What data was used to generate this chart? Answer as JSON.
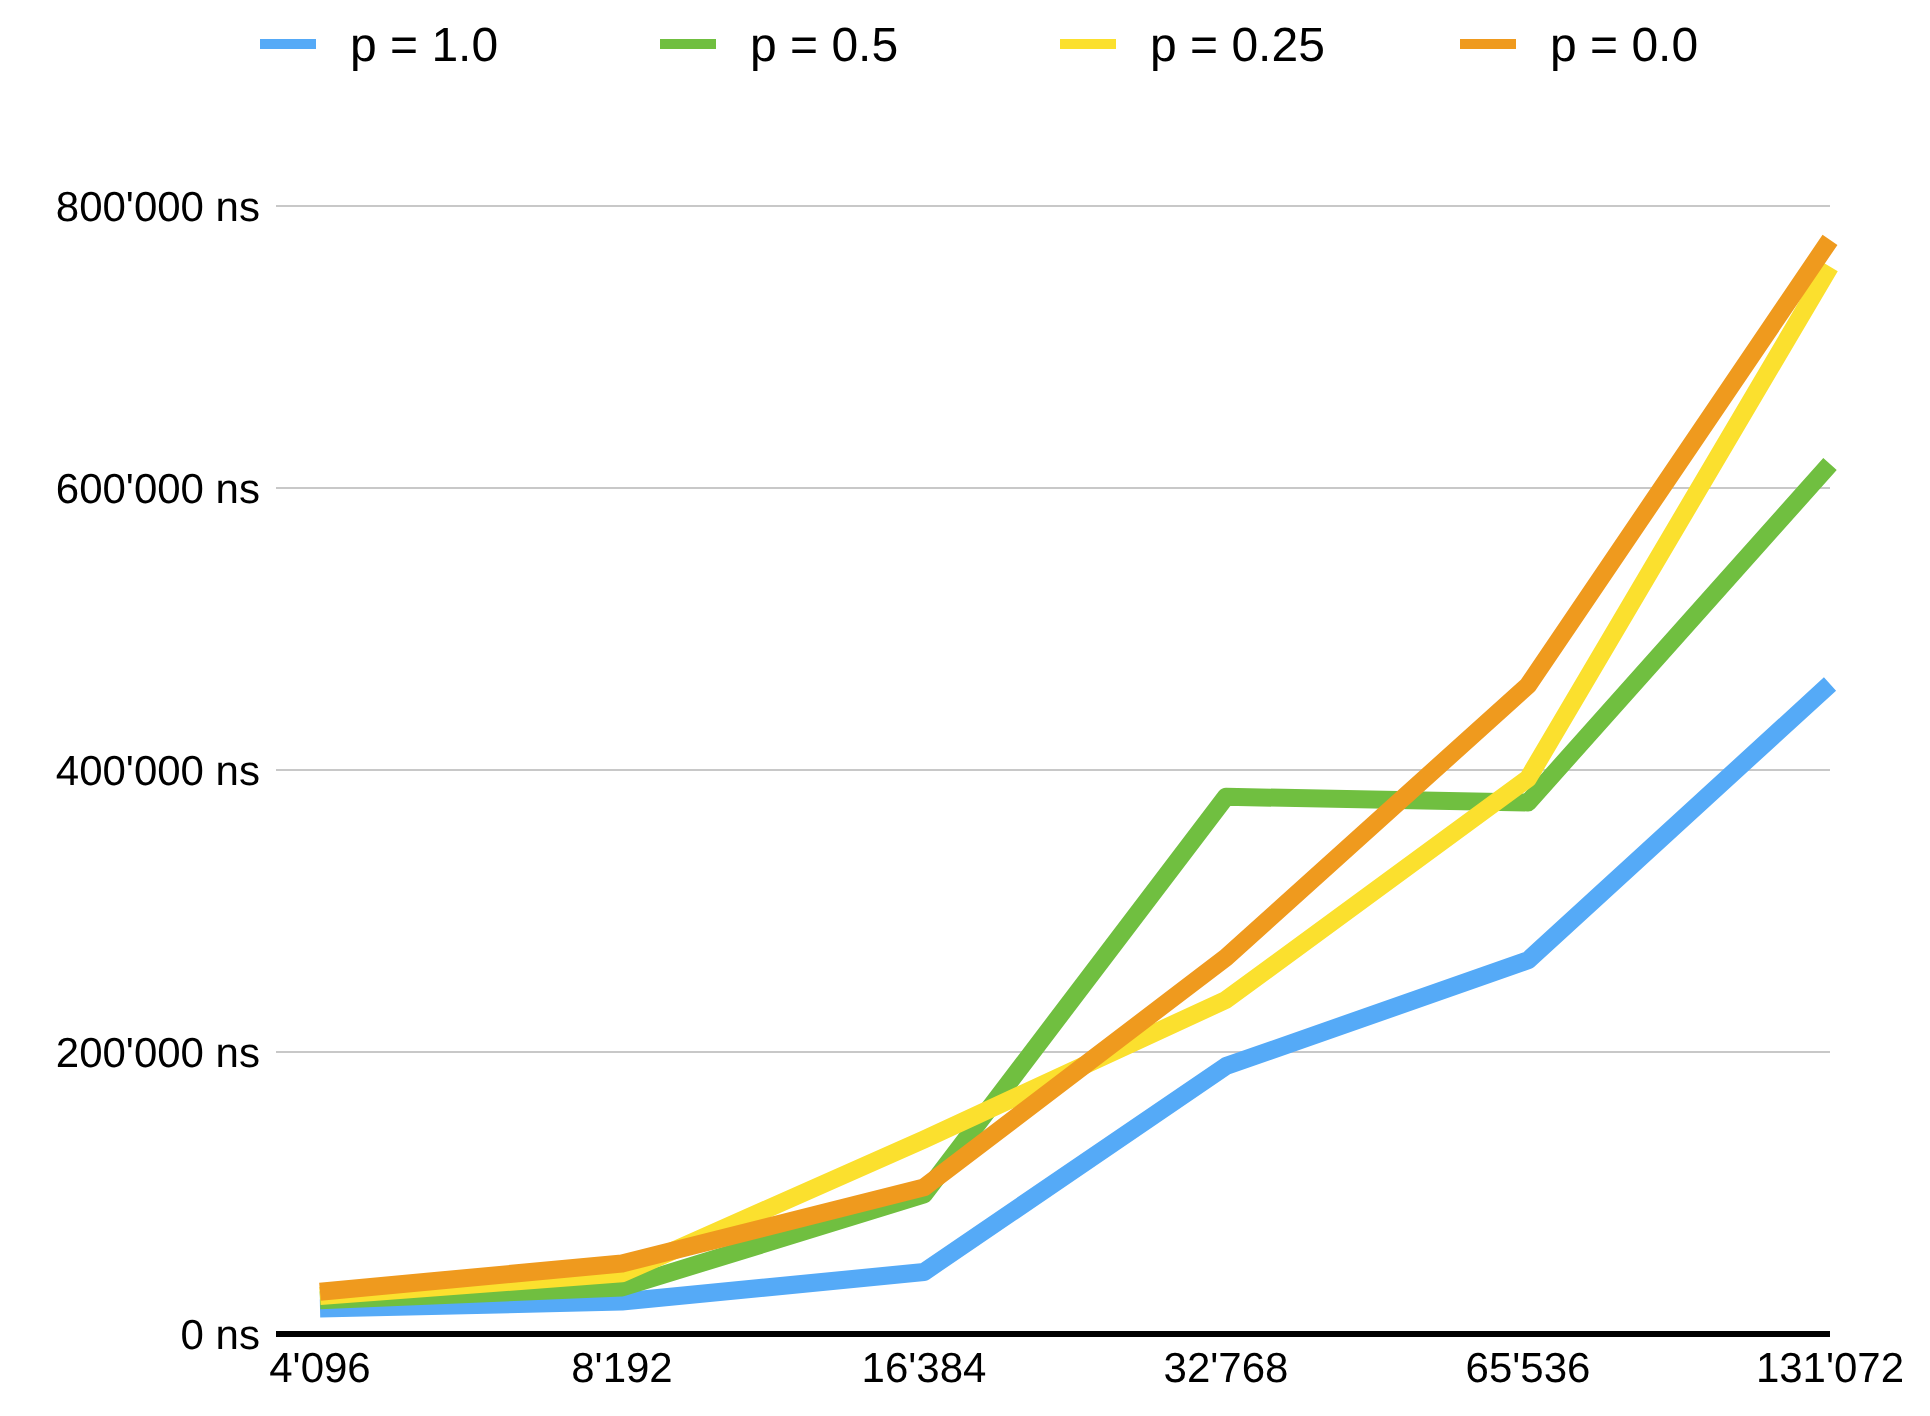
{
  "chart_data": {
    "type": "line",
    "categories": [
      "4'096",
      "8'192",
      "16'384",
      "32'768",
      "65'536",
      "131'072"
    ],
    "series": [
      {
        "name": "p = 1.0",
        "color": "#55aaf7",
        "values": [
          18000,
          23000,
          44000,
          190000,
          265000,
          461000
        ]
      },
      {
        "name": "p = 0.5",
        "color": "#70bf40",
        "values": [
          24000,
          33000,
          99000,
          381000,
          377000,
          617000
        ]
      },
      {
        "name": "p = 0.25",
        "color": "#fbe02e",
        "values": [
          27000,
          43000,
          138000,
          237000,
          394000,
          757000
        ]
      },
      {
        "name": "p = 0.0",
        "color": "#ef9a1e",
        "values": [
          30000,
          50000,
          104000,
          267000,
          460000,
          776000
        ]
      }
    ],
    "ylim": [
      0,
      800000
    ],
    "yticks": [
      {
        "value": 0,
        "label": "0 ns"
      },
      {
        "value": 200000,
        "label": "200'000 ns"
      },
      {
        "value": 400000,
        "label": "400'000 ns"
      },
      {
        "value": 600000,
        "label": "600'000 ns"
      },
      {
        "value": 800000,
        "label": "800'000 ns"
      }
    ],
    "grid": "y",
    "legend": "top",
    "marker": "none",
    "line_style": "solid"
  }
}
